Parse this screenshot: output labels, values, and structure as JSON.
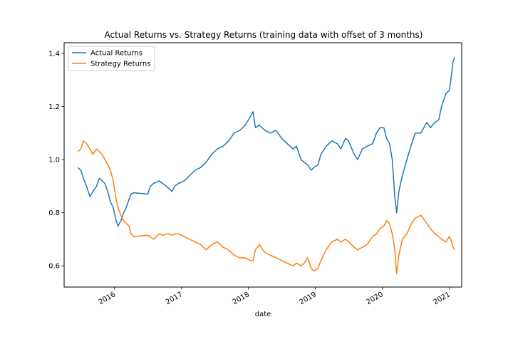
{
  "chart_data": {
    "type": "line",
    "title": "Actual Returns vs. Strategy Returns (training data with offset of 3 months)",
    "xlabel": "date",
    "ylabel": "",
    "xlim": [
      "2015-04-01",
      "2021-03-10"
    ],
    "ylim": [
      0.52,
      1.44
    ],
    "x_ticks": [
      "2016",
      "2017",
      "2018",
      "2019",
      "2020",
      "2021"
    ],
    "y_ticks": [
      "0.6",
      "0.8",
      "1.0",
      "1.2",
      "1.4"
    ],
    "grid": false,
    "legend_position": "top-left",
    "series": [
      {
        "name": "Actual Returns",
        "color": "#1f77b4",
        "points": [
          [
            "2015-06-15",
            0.97
          ],
          [
            "2015-07-01",
            0.96
          ],
          [
            "2015-07-15",
            0.93
          ],
          [
            "2015-08-01",
            0.9
          ],
          [
            "2015-08-20",
            0.86
          ],
          [
            "2015-09-05",
            0.88
          ],
          [
            "2015-09-25",
            0.9
          ],
          [
            "2015-10-10",
            0.93
          ],
          [
            "2015-10-25",
            0.92
          ],
          [
            "2015-11-10",
            0.91
          ],
          [
            "2015-11-25",
            0.88
          ],
          [
            "2015-12-10",
            0.84
          ],
          [
            "2015-12-25",
            0.82
          ],
          [
            "2016-01-10",
            0.77
          ],
          [
            "2016-01-20",
            0.75
          ],
          [
            "2016-02-05",
            0.77
          ],
          [
            "2016-02-20",
            0.8
          ],
          [
            "2016-03-05",
            0.82
          ],
          [
            "2016-03-20",
            0.85
          ],
          [
            "2016-04-01",
            0.87
          ],
          [
            "2016-04-15",
            0.875
          ],
          [
            "2016-06-30",
            0.87
          ],
          [
            "2016-07-15",
            0.9
          ],
          [
            "2016-08-01",
            0.91
          ],
          [
            "2016-09-01",
            0.92
          ],
          [
            "2016-09-20",
            0.91
          ],
          [
            "2016-10-10",
            0.9
          ],
          [
            "2016-10-25",
            0.89
          ],
          [
            "2016-11-10",
            0.88
          ],
          [
            "2016-11-25",
            0.9
          ],
          [
            "2016-12-15",
            0.91
          ],
          [
            "2017-01-15",
            0.92
          ],
          [
            "2017-02-15",
            0.94
          ],
          [
            "2017-03-15",
            0.96
          ],
          [
            "2017-04-15",
            0.97
          ],
          [
            "2017-05-15",
            0.99
          ],
          [
            "2017-06-15",
            1.02
          ],
          [
            "2017-07-15",
            1.04
          ],
          [
            "2017-08-15",
            1.05
          ],
          [
            "2017-09-15",
            1.07
          ],
          [
            "2017-10-15",
            1.1
          ],
          [
            "2017-11-15",
            1.11
          ],
          [
            "2017-12-15",
            1.13
          ],
          [
            "2018-01-10",
            1.16
          ],
          [
            "2018-01-26",
            1.18
          ],
          [
            "2018-02-08",
            1.12
          ],
          [
            "2018-03-01",
            1.13
          ],
          [
            "2018-04-01",
            1.11
          ],
          [
            "2018-05-01",
            1.1
          ],
          [
            "2018-06-01",
            1.11
          ],
          [
            "2018-07-01",
            1.08
          ],
          [
            "2018-08-01",
            1.06
          ],
          [
            "2018-09-01",
            1.04
          ],
          [
            "2018-09-20",
            1.05
          ],
          [
            "2018-10-15",
            1.0
          ],
          [
            "2018-11-01",
            0.99
          ],
          [
            "2018-11-20",
            0.98
          ],
          [
            "2018-12-10",
            0.96
          ],
          [
            "2018-12-24",
            0.97
          ],
          [
            "2019-01-15",
            0.98
          ],
          [
            "2019-02-01",
            1.02
          ],
          [
            "2019-03-01",
            1.05
          ],
          [
            "2019-04-01",
            1.07
          ],
          [
            "2019-05-01",
            1.06
          ],
          [
            "2019-05-20",
            1.04
          ],
          [
            "2019-06-15",
            1.08
          ],
          [
            "2019-07-01",
            1.07
          ],
          [
            "2019-08-01",
            1.02
          ],
          [
            "2019-08-20",
            1.0
          ],
          [
            "2019-09-15",
            1.04
          ],
          [
            "2019-10-10",
            1.05
          ],
          [
            "2019-11-10",
            1.06
          ],
          [
            "2019-12-01",
            1.1
          ],
          [
            "2019-12-20",
            1.12
          ],
          [
            "2020-01-10",
            1.12
          ],
          [
            "2020-01-25",
            1.08
          ],
          [
            "2020-02-10",
            1.06
          ],
          [
            "2020-02-25",
            1.0
          ],
          [
            "2020-03-10",
            0.86
          ],
          [
            "2020-03-20",
            0.8
          ],
          [
            "2020-04-01",
            0.88
          ],
          [
            "2020-04-20",
            0.94
          ],
          [
            "2020-05-15",
            1.0
          ],
          [
            "2020-06-10",
            1.06
          ],
          [
            "2020-06-30",
            1.1
          ],
          [
            "2020-07-30",
            1.1
          ],
          [
            "2020-09-01",
            1.14
          ],
          [
            "2020-09-20",
            1.12
          ],
          [
            "2020-10-15",
            1.14
          ],
          [
            "2020-11-05",
            1.15
          ],
          [
            "2020-11-20",
            1.2
          ],
          [
            "2020-12-15",
            1.25
          ],
          [
            "2021-01-01",
            1.26
          ],
          [
            "2021-01-10",
            1.3
          ],
          [
            "2021-01-22",
            1.37
          ],
          [
            "2021-01-31",
            1.385
          ]
        ]
      },
      {
        "name": "Strategy Returns",
        "color": "#ff7f0e",
        "points": [
          [
            "2015-06-15",
            1.03
          ],
          [
            "2015-07-01",
            1.04
          ],
          [
            "2015-07-15",
            1.07
          ],
          [
            "2015-08-01",
            1.06
          ],
          [
            "2015-08-20",
            1.04
          ],
          [
            "2015-09-05",
            1.02
          ],
          [
            "2015-09-25",
            1.04
          ],
          [
            "2015-10-10",
            1.03
          ],
          [
            "2015-10-25",
            1.02
          ],
          [
            "2015-11-10",
            1.0
          ],
          [
            "2015-11-25",
            0.98
          ],
          [
            "2015-12-10",
            0.96
          ],
          [
            "2015-12-25",
            0.92
          ],
          [
            "2016-01-10",
            0.85
          ],
          [
            "2016-01-20",
            0.82
          ],
          [
            "2016-02-05",
            0.79
          ],
          [
            "2016-02-20",
            0.77
          ],
          [
            "2016-03-05",
            0.76
          ],
          [
            "2016-03-20",
            0.75
          ],
          [
            "2016-04-01",
            0.72
          ],
          [
            "2016-04-15",
            0.71
          ],
          [
            "2016-06-30",
            0.715
          ],
          [
            "2016-07-15",
            0.71
          ],
          [
            "2016-08-01",
            0.7
          ],
          [
            "2016-09-01",
            0.72
          ],
          [
            "2016-09-20",
            0.715
          ],
          [
            "2016-10-10",
            0.72
          ],
          [
            "2016-10-25",
            0.72
          ],
          [
            "2016-11-10",
            0.715
          ],
          [
            "2016-11-25",
            0.72
          ],
          [
            "2016-12-15",
            0.72
          ],
          [
            "2017-01-15",
            0.71
          ],
          [
            "2017-02-15",
            0.7
          ],
          [
            "2017-03-15",
            0.69
          ],
          [
            "2017-04-15",
            0.68
          ],
          [
            "2017-05-15",
            0.66
          ],
          [
            "2017-06-15",
            0.68
          ],
          [
            "2017-07-15",
            0.69
          ],
          [
            "2017-08-15",
            0.67
          ],
          [
            "2017-09-15",
            0.66
          ],
          [
            "2017-10-15",
            0.64
          ],
          [
            "2017-11-15",
            0.63
          ],
          [
            "2017-12-15",
            0.63
          ],
          [
            "2018-01-10",
            0.62
          ],
          [
            "2018-01-26",
            0.62
          ],
          [
            "2018-02-08",
            0.66
          ],
          [
            "2018-03-01",
            0.68
          ],
          [
            "2018-04-01",
            0.65
          ],
          [
            "2018-05-01",
            0.64
          ],
          [
            "2018-06-01",
            0.63
          ],
          [
            "2018-07-01",
            0.62
          ],
          [
            "2018-08-01",
            0.61
          ],
          [
            "2018-09-01",
            0.6
          ],
          [
            "2018-09-20",
            0.61
          ],
          [
            "2018-10-15",
            0.6
          ],
          [
            "2018-11-01",
            0.61
          ],
          [
            "2018-11-20",
            0.63
          ],
          [
            "2018-12-10",
            0.59
          ],
          [
            "2018-12-24",
            0.58
          ],
          [
            "2019-01-15",
            0.59
          ],
          [
            "2019-02-01",
            0.62
          ],
          [
            "2019-03-01",
            0.66
          ],
          [
            "2019-04-01",
            0.69
          ],
          [
            "2019-05-01",
            0.7
          ],
          [
            "2019-05-20",
            0.69
          ],
          [
            "2019-06-15",
            0.7
          ],
          [
            "2019-07-01",
            0.69
          ],
          [
            "2019-08-01",
            0.67
          ],
          [
            "2019-08-20",
            0.66
          ],
          [
            "2019-09-15",
            0.67
          ],
          [
            "2019-10-10",
            0.68
          ],
          [
            "2019-11-10",
            0.71
          ],
          [
            "2019-12-01",
            0.72
          ],
          [
            "2019-12-20",
            0.74
          ],
          [
            "2020-01-10",
            0.75
          ],
          [
            "2020-01-25",
            0.77
          ],
          [
            "2020-02-10",
            0.76
          ],
          [
            "2020-02-25",
            0.72
          ],
          [
            "2020-03-10",
            0.66
          ],
          [
            "2020-03-20",
            0.57
          ],
          [
            "2020-04-01",
            0.64
          ],
          [
            "2020-04-20",
            0.7
          ],
          [
            "2020-05-15",
            0.72
          ],
          [
            "2020-06-10",
            0.76
          ],
          [
            "2020-06-30",
            0.78
          ],
          [
            "2020-07-30",
            0.79
          ],
          [
            "2020-09-01",
            0.76
          ],
          [
            "2020-09-20",
            0.74
          ],
          [
            "2020-10-15",
            0.72
          ],
          [
            "2020-11-05",
            0.71
          ],
          [
            "2020-11-20",
            0.7
          ],
          [
            "2020-12-15",
            0.69
          ],
          [
            "2021-01-01",
            0.71
          ],
          [
            "2021-01-10",
            0.7
          ],
          [
            "2021-01-22",
            0.67
          ],
          [
            "2021-01-31",
            0.66
          ]
        ]
      }
    ]
  }
}
